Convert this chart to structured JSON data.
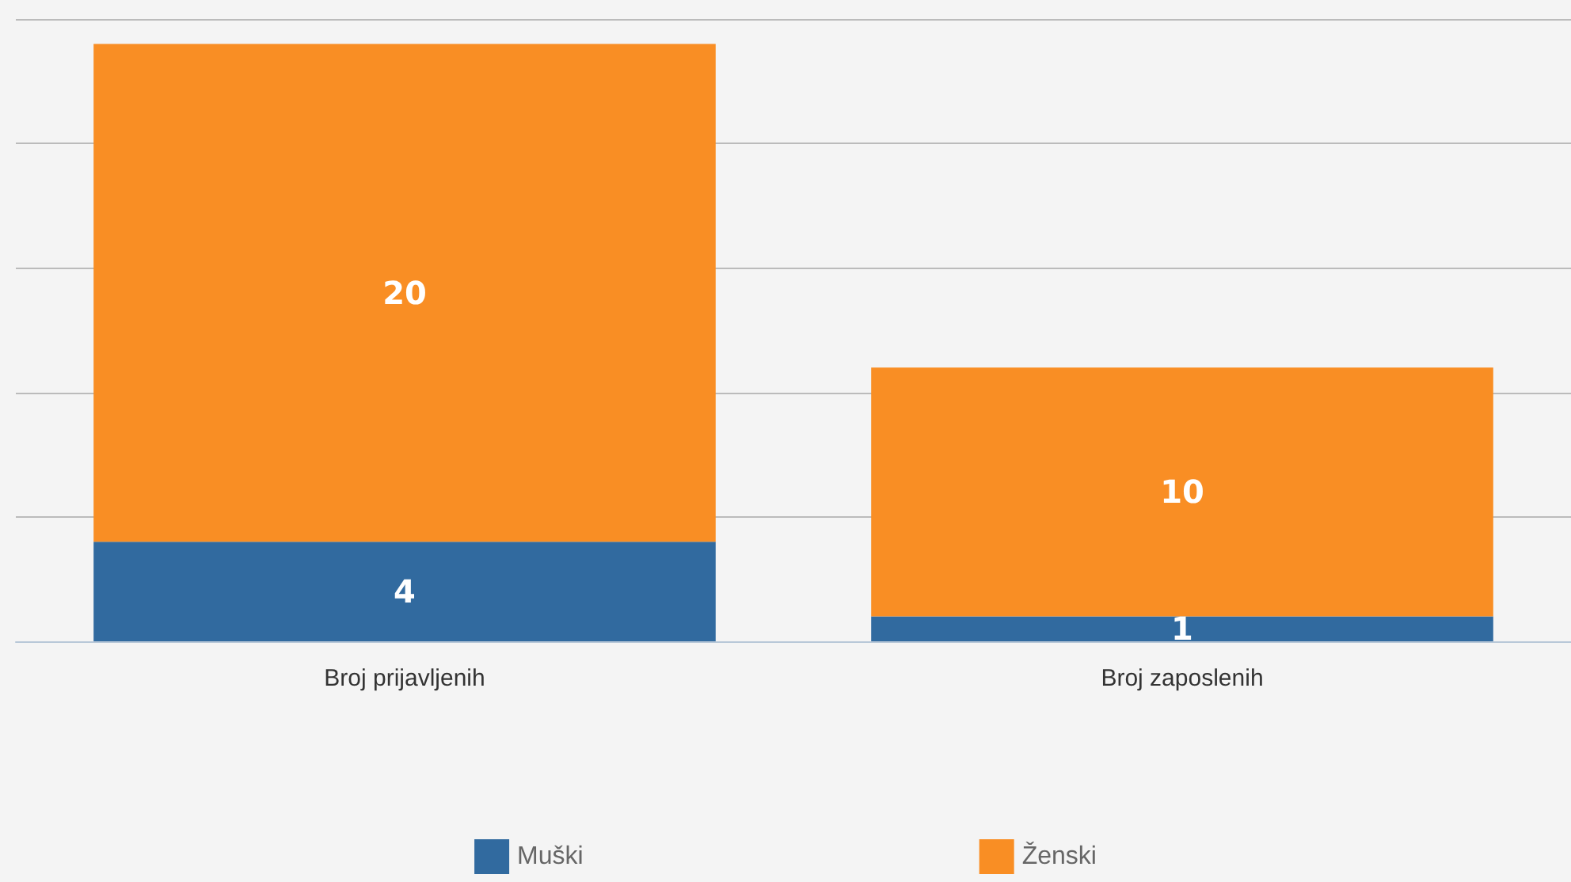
{
  "chart_data": {
    "type": "bar",
    "stacked": true,
    "categories": [
      "Broj prijavljenih",
      "Broj zaposlenih"
    ],
    "series": [
      {
        "name": "Muški",
        "color": "#316a9f",
        "values": [
          4,
          1
        ]
      },
      {
        "name": "Ženski",
        "color": "#f98e24",
        "values": [
          20,
          10
        ]
      }
    ],
    "data_labels": true,
    "grid": "y",
    "legend": "bottom",
    "tick_labels": "x"
  }
}
